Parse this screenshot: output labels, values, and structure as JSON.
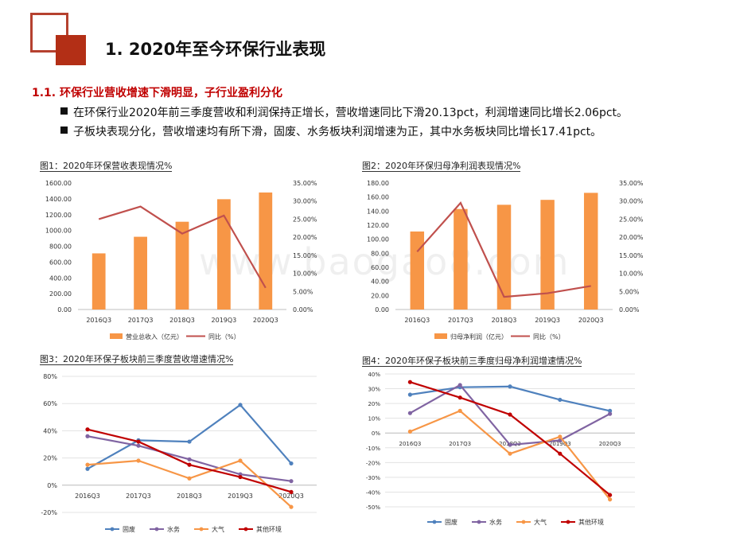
{
  "header": {
    "title": "1. 2020年至今环保行业表现"
  },
  "section": {
    "subtitle": "1.1. 环保行业营收增速下滑明显，子行业盈利分化",
    "bullets": [
      "在环保行业2020年前三季度营收和利润保持正增长，营收增速同比下滑20.13pct，利润增速同比增长2.06pct。",
      "子板块表现分化，营收增速均有所下滑，固废、水务板块利润增速为正，其中水务板块同比增长17.41pct。"
    ]
  },
  "watermark": "www.baogao8.com",
  "chart_data": [
    {
      "type": "bar+line",
      "title": "图1：2020年环保营收表现情况%",
      "categories": [
        "2016Q3",
        "2017Q3",
        "2018Q3",
        "2019Q3",
        "2020Q3"
      ],
      "series": [
        {
          "name": "营业总收入（亿元）",
          "type": "bar",
          "axis": "left",
          "color": "#f79646",
          "values": [
            710,
            920,
            1110,
            1395,
            1480
          ]
        },
        {
          "name": "同比（%）",
          "type": "line",
          "axis": "right",
          "color": "#c0504d",
          "values": [
            25.0,
            28.5,
            21.0,
            26.0,
            6.0
          ]
        }
      ],
      "left_axis": {
        "min": 0,
        "max": 1600,
        "step": 200,
        "ticks": [
          "0.00",
          "200.00",
          "400.00",
          "600.00",
          "800.00",
          "1000.00",
          "1200.00",
          "1400.00",
          "1600.00"
        ]
      },
      "right_axis": {
        "min": 0,
        "max": 35,
        "step": 5,
        "ticks": [
          "0.00%",
          "5.00%",
          "10.00%",
          "15.00%",
          "20.00%",
          "25.00%",
          "30.00%",
          "35.00%"
        ]
      },
      "legend": "bottom"
    },
    {
      "type": "bar+line",
      "title": "图2：2020年环保归母净利润表现情况%",
      "categories": [
        "2016Q3",
        "2017Q3",
        "2018Q3",
        "2019Q3",
        "2020Q3"
      ],
      "series": [
        {
          "name": "归母净利润（亿元）",
          "type": "bar",
          "axis": "left",
          "color": "#f79646",
          "values": [
            111,
            143,
            149,
            156,
            166
          ]
        },
        {
          "name": "同比（%）",
          "type": "line",
          "axis": "right",
          "color": "#c0504d",
          "values": [
            16.0,
            29.5,
            3.5,
            4.5,
            6.5
          ]
        }
      ],
      "left_axis": {
        "min": 0,
        "max": 180,
        "step": 20,
        "ticks": [
          "0.00",
          "20.00",
          "40.00",
          "60.00",
          "80.00",
          "100.00",
          "120.00",
          "140.00",
          "160.00",
          "180.00"
        ]
      },
      "right_axis": {
        "min": 0,
        "max": 35,
        "step": 5,
        "ticks": [
          "0.00%",
          "5.00%",
          "10.00%",
          "15.00%",
          "20.00%",
          "25.00%",
          "30.00%",
          "35.00%"
        ]
      },
      "legend": "bottom"
    },
    {
      "type": "line",
      "title": "图3：2020年环保子板块前三季度营收增速情况%",
      "categories": [
        "2016Q3",
        "2017Q3",
        "2018Q3",
        "2019Q3",
        "2020Q3"
      ],
      "series": [
        {
          "name": "固废",
          "color": "#4f81bd",
          "values": [
            12,
            33,
            32,
            59,
            16
          ]
        },
        {
          "name": "水务",
          "color": "#8064a2",
          "values": [
            36,
            29,
            19,
            8,
            3
          ]
        },
        {
          "name": "大气",
          "color": "#f79646",
          "values": [
            15,
            18,
            5,
            18,
            -16
          ]
        },
        {
          "name": "其他环境",
          "color": "#c00000",
          "values": [
            41,
            32,
            15,
            6,
            -5
          ]
        }
      ],
      "y_axis": {
        "min": -20,
        "max": 80,
        "step": 20,
        "ticks": [
          "-20%",
          "0%",
          "20%",
          "40%",
          "60%",
          "80%"
        ]
      },
      "legend": "bottom"
    },
    {
      "type": "line",
      "title": "图4：2020年环保子板块前三季度归母净利润增速情况%",
      "categories": [
        "2016Q3",
        "2017Q3",
        "2018Q3",
        "2019Q3",
        "2020Q3"
      ],
      "series": [
        {
          "name": "固废",
          "color": "#4f81bd",
          "values": [
            26,
            31,
            31.5,
            22.5,
            15
          ]
        },
        {
          "name": "水务",
          "color": "#8064a2",
          "values": [
            13.5,
            32.5,
            -8,
            -5,
            13
          ]
        },
        {
          "name": "大气",
          "color": "#f79646",
          "values": [
            1,
            15,
            -14,
            -2.5,
            -45
          ]
        },
        {
          "name": "其他环境",
          "color": "#c00000",
          "values": [
            34.5,
            24,
            12.5,
            -14,
            -42
          ]
        }
      ],
      "y_axis": {
        "min": -50,
        "max": 40,
        "step": 10,
        "ticks": [
          "-50%",
          "-40%",
          "-30%",
          "-20%",
          "-10%",
          "0%",
          "10%",
          "20%",
          "30%",
          "40%"
        ]
      },
      "legend": "bottom"
    }
  ]
}
